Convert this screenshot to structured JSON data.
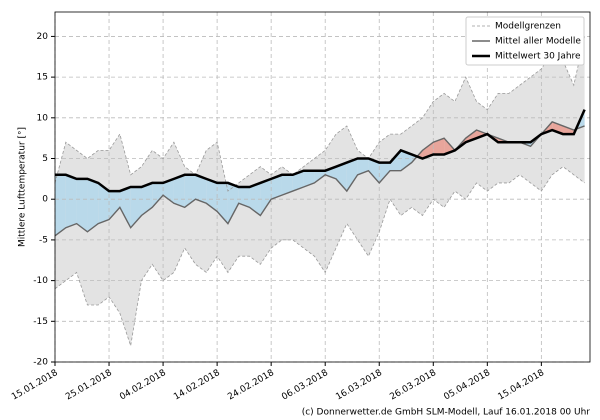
{
  "chart_data": {
    "type": "ensemble",
    "y_label": "Mittlere Lufttemperatur [°]",
    "footer": "(c) Donnerwetter.de GmbH SLM-Modell, Lauf 16.01.2018 00 Uhr",
    "x": [
      "15.01.2018",
      "17.01.2018",
      "19.01.2018",
      "21.01.2018",
      "23.01.2018",
      "25.01.2018",
      "27.01.2018",
      "29.01.2018",
      "31.01.2018",
      "02.02.2018",
      "04.02.2018",
      "06.02.2018",
      "08.02.2018",
      "10.02.2018",
      "12.02.2018",
      "14.02.2018",
      "16.02.2018",
      "18.02.2018",
      "20.02.2018",
      "22.02.2018",
      "24.02.2018",
      "26.02.2018",
      "28.02.2018",
      "02.03.2018",
      "04.03.2018",
      "06.03.2018",
      "08.03.2018",
      "10.03.2018",
      "12.03.2018",
      "14.03.2018",
      "16.03.2018",
      "18.03.2018",
      "20.03.2018",
      "22.03.2018",
      "24.03.2018",
      "26.03.2018",
      "28.03.2018",
      "30.03.2018",
      "01.04.2018",
      "03.04.2018",
      "05.04.2018",
      "07.04.2018",
      "09.04.2018",
      "11.04.2018",
      "13.04.2018",
      "15.04.2018",
      "17.04.2018",
      "19.04.2018",
      "21.04.2018",
      "23.04.2018"
    ],
    "series": [
      {
        "name": "Modellgrenzen",
        "color": "#999999",
        "band_color": "#e3e3e3",
        "upper": [
          2,
          7,
          6,
          5,
          6,
          6,
          8,
          3,
          4,
          6,
          5,
          7,
          4,
          3,
          6,
          7,
          1,
          2,
          3,
          4,
          3,
          4,
          3,
          4,
          5,
          6,
          8,
          9,
          6,
          5,
          7,
          8,
          8,
          9,
          10,
          12,
          13,
          12,
          15,
          12,
          11,
          13,
          13,
          14,
          15,
          16,
          18,
          17,
          14,
          20
        ],
        "lower": [
          -11,
          -10,
          -9,
          -13,
          -13,
          -12,
          -14,
          -18,
          -10,
          -8,
          -10,
          -9,
          -6,
          -8,
          -9,
          -7,
          -9,
          -7,
          -7,
          -8,
          -6,
          -5,
          -5,
          -6,
          -7,
          -9,
          -6,
          -3,
          -5,
          -7,
          -4,
          0,
          -2,
          -1,
          -2,
          0,
          -1,
          1,
          0,
          2,
          1,
          2,
          2,
          3,
          2,
          1,
          3,
          4,
          3,
          2
        ]
      },
      {
        "name": "Mittel aller Modelle",
        "color": "#666666",
        "values": [
          -4.5,
          -3.5,
          -3,
          -4,
          -3,
          -2.5,
          -1,
          -3.5,
          -2,
          -1,
          0.5,
          -0.5,
          -1,
          0,
          -0.5,
          -1.5,
          -3,
          -0.5,
          -1,
          -2,
          0,
          0.5,
          1,
          1.5,
          2,
          3,
          2.5,
          1,
          3,
          3.5,
          2,
          3.5,
          3.5,
          4.5,
          6,
          7,
          7.5,
          6,
          7.5,
          8.5,
          8,
          7.5,
          7,
          7,
          6.5,
          8,
          9.5,
          9,
          8.5,
          9
        ]
      },
      {
        "name": "Mittelwert 30 Jahre",
        "color": "#000000",
        "values": [
          3,
          3,
          2.5,
          2.5,
          2,
          1,
          1,
          1.5,
          1.5,
          2,
          2,
          2.5,
          3,
          3,
          2.5,
          2,
          2,
          1.5,
          1.5,
          2,
          2.5,
          3,
          3,
          3.5,
          3.5,
          3.5,
          4,
          4.5,
          5,
          5,
          4.5,
          4.5,
          6,
          5.5,
          5,
          5.5,
          5.5,
          6,
          7,
          7.5,
          8,
          7,
          7,
          7,
          7,
          8,
          8.5,
          8,
          8,
          11
        ]
      }
    ],
    "above_color": "#e8a59b",
    "below_color": "#b9d9ea",
    "xlim": [
      "15.01.2018",
      "24.04.2018"
    ],
    "xticks": [
      "15.01.2018",
      "25.01.2018",
      "04.02.2018",
      "14.02.2018",
      "24.02.2018",
      "06.03.2018",
      "16.03.2018",
      "26.03.2018",
      "05.04.2018",
      "15.04.2018"
    ],
    "ylim": [
      -20,
      23
    ],
    "yticks": [
      -20,
      -15,
      -10,
      -5,
      0,
      5,
      10,
      15,
      20
    ],
    "grid": true,
    "legend": "upper right"
  }
}
